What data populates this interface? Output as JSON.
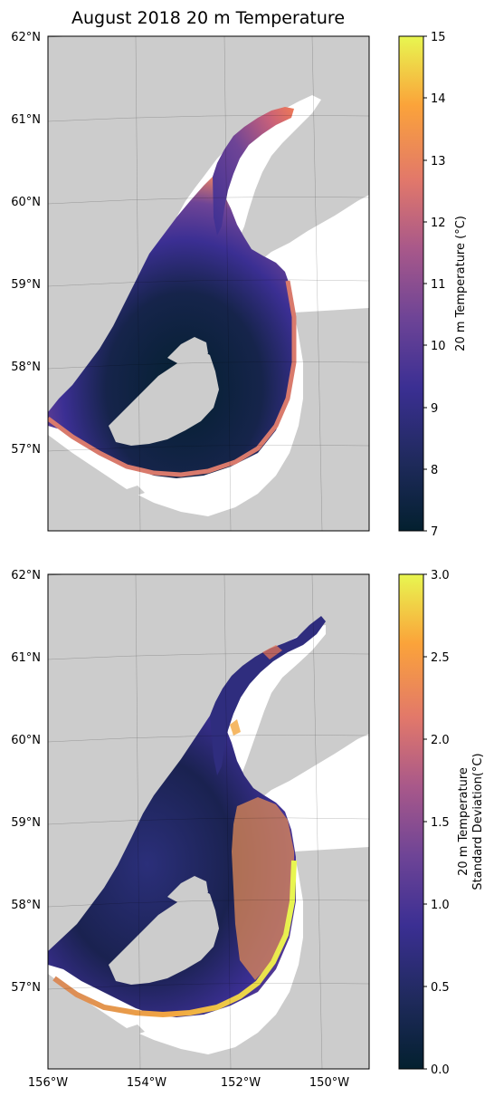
{
  "title": "August 2018 20 m Temperature",
  "lat_labels": [
    "62°N",
    "61°N",
    "60°N",
    "59°N",
    "58°N",
    "57°N"
  ],
  "lon_labels": [
    "156°W",
    "154°W",
    "152°W",
    "150°W"
  ],
  "colors": {
    "land": "#cccccc",
    "background": "#ffffff",
    "colormap": [
      "#03202f",
      "#1f2a5c",
      "#3b2f93",
      "#6e4496",
      "#a8588a",
      "#e2786a",
      "#fba33a",
      "#e8f650"
    ]
  },
  "panels": [
    {
      "colorbar_label_lines": [
        "20 m Temperature (°C)"
      ],
      "colorbar_ticks": [
        "15",
        "14",
        "13",
        "12",
        "11",
        "10",
        "9",
        "8",
        "7"
      ],
      "range": [
        7,
        15
      ]
    },
    {
      "colorbar_label_lines": [
        "20 m Temperature",
        "Standard Deviation(°C)"
      ],
      "colorbar_ticks": [
        "3.0",
        "2.5",
        "2.0",
        "1.5",
        "1.0",
        "0.5",
        "0.0"
      ],
      "range": [
        0,
        3
      ]
    }
  ]
}
